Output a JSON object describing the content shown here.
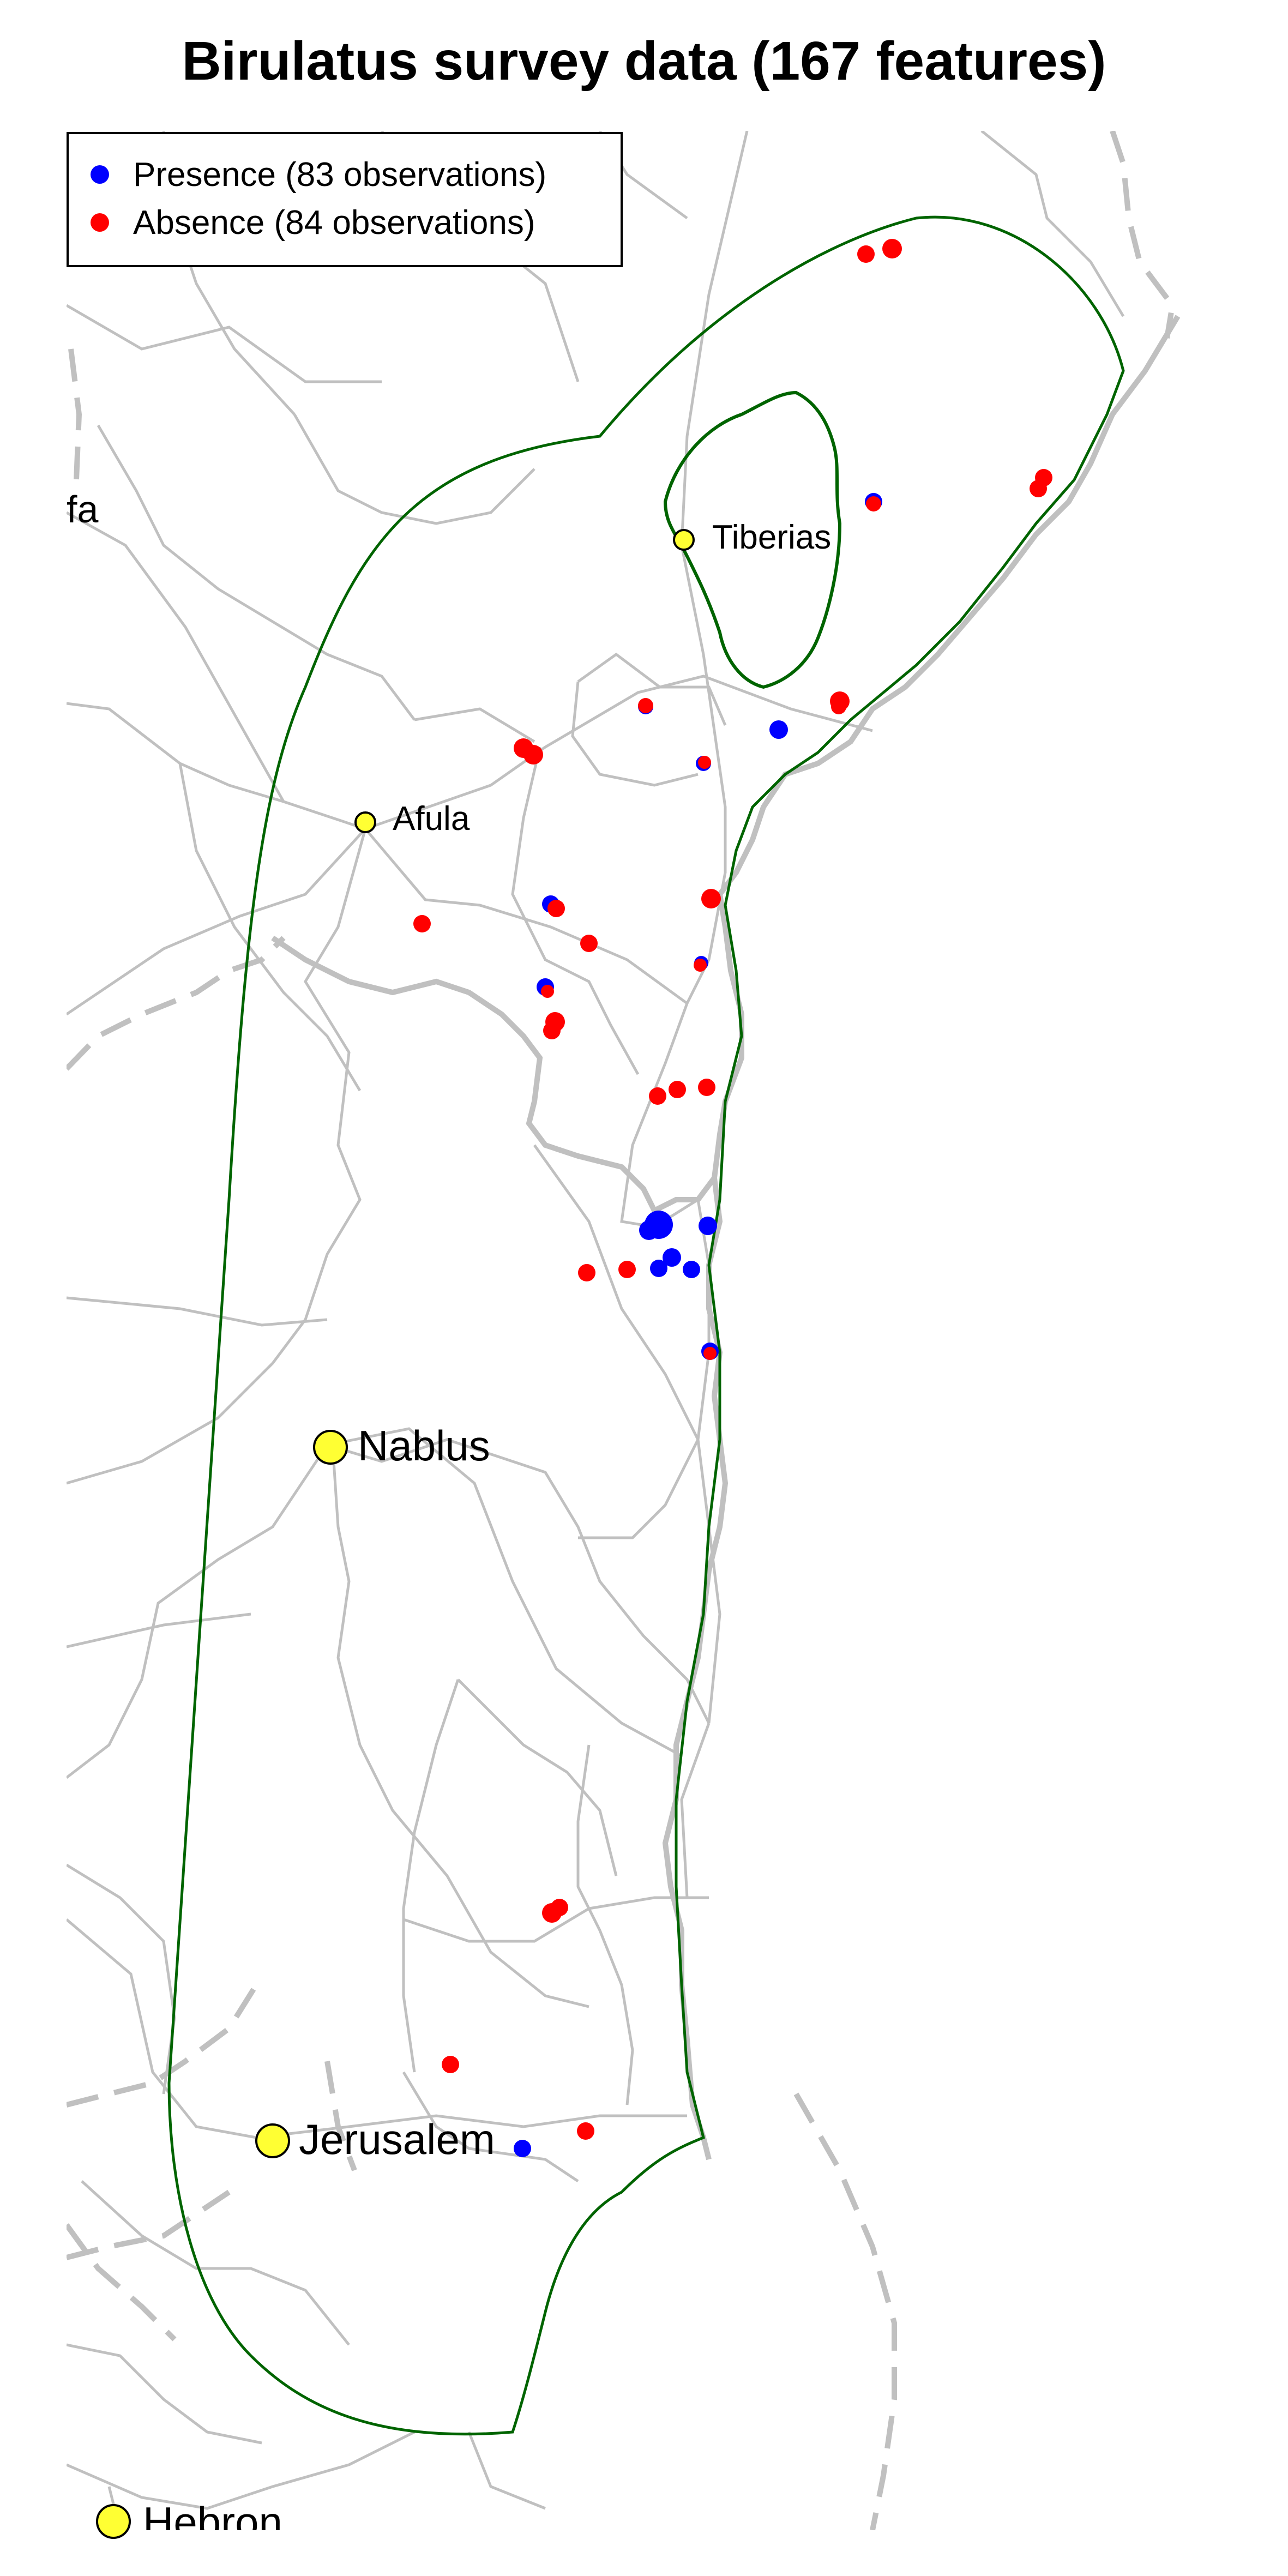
{
  "title": "Birulatus survey data (167 features)",
  "legend": {
    "presence_label": "Presence (83 observations)",
    "absence_label": "Absence (84 observations)",
    "presence_color": "#0000ff",
    "absence_color": "#ff0000"
  },
  "cities": [
    {
      "name": "Tiberias",
      "size": "small"
    },
    {
      "name": "Afula",
      "size": "small"
    },
    {
      "name": "Nablus",
      "size": "large"
    },
    {
      "name": "Jerusalem",
      "size": "large"
    },
    {
      "name": "Hebron",
      "size": "large"
    },
    {
      "name": "fa",
      "size": "partial"
    }
  ],
  "colors": {
    "city_marker": "#ffff33",
    "roads": "#c0c0c0",
    "study_area_outline": "#006400",
    "lake_outline": "#006400",
    "border_dashed": "#c0c0c0"
  },
  "observation_counts": {
    "presence": 83,
    "absence": 84,
    "total": 167
  }
}
